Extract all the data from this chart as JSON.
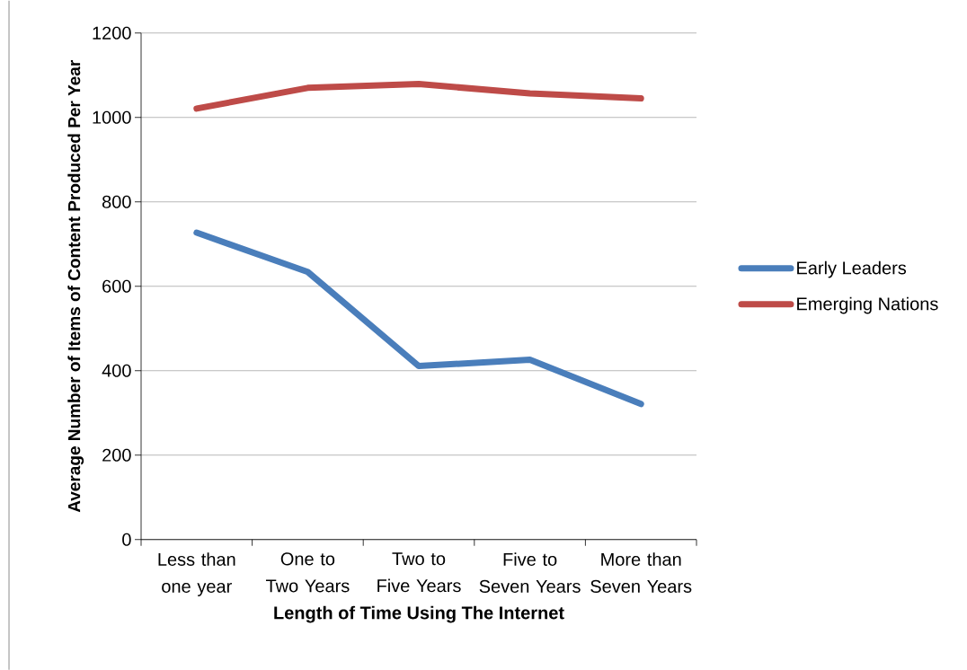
{
  "chart_data": {
    "type": "line",
    "xlabel": "Length of Time Using The Internet",
    "ylabel": "Average Number of Items of Content Produced Per Year",
    "categories": [
      "Less than one year",
      "One to Two Years",
      "Two to Five Years",
      "Five to Seven Years",
      "More than Seven Years"
    ],
    "series": [
      {
        "name": "Early Leaders",
        "color": "#4a7ebb",
        "values": [
          727,
          634,
          411,
          426,
          321
        ]
      },
      {
        "name": "Emerging Nations",
        "color": "#be4b48",
        "values": [
          1021,
          1070,
          1079,
          1057,
          1045
        ]
      }
    ],
    "ylim": [
      0,
      1200
    ],
    "yticks": [
      0,
      200,
      400,
      600,
      800,
      1000,
      1200
    ],
    "grid": "y",
    "legend": "right",
    "marker": "none",
    "line_style": "solid"
  }
}
